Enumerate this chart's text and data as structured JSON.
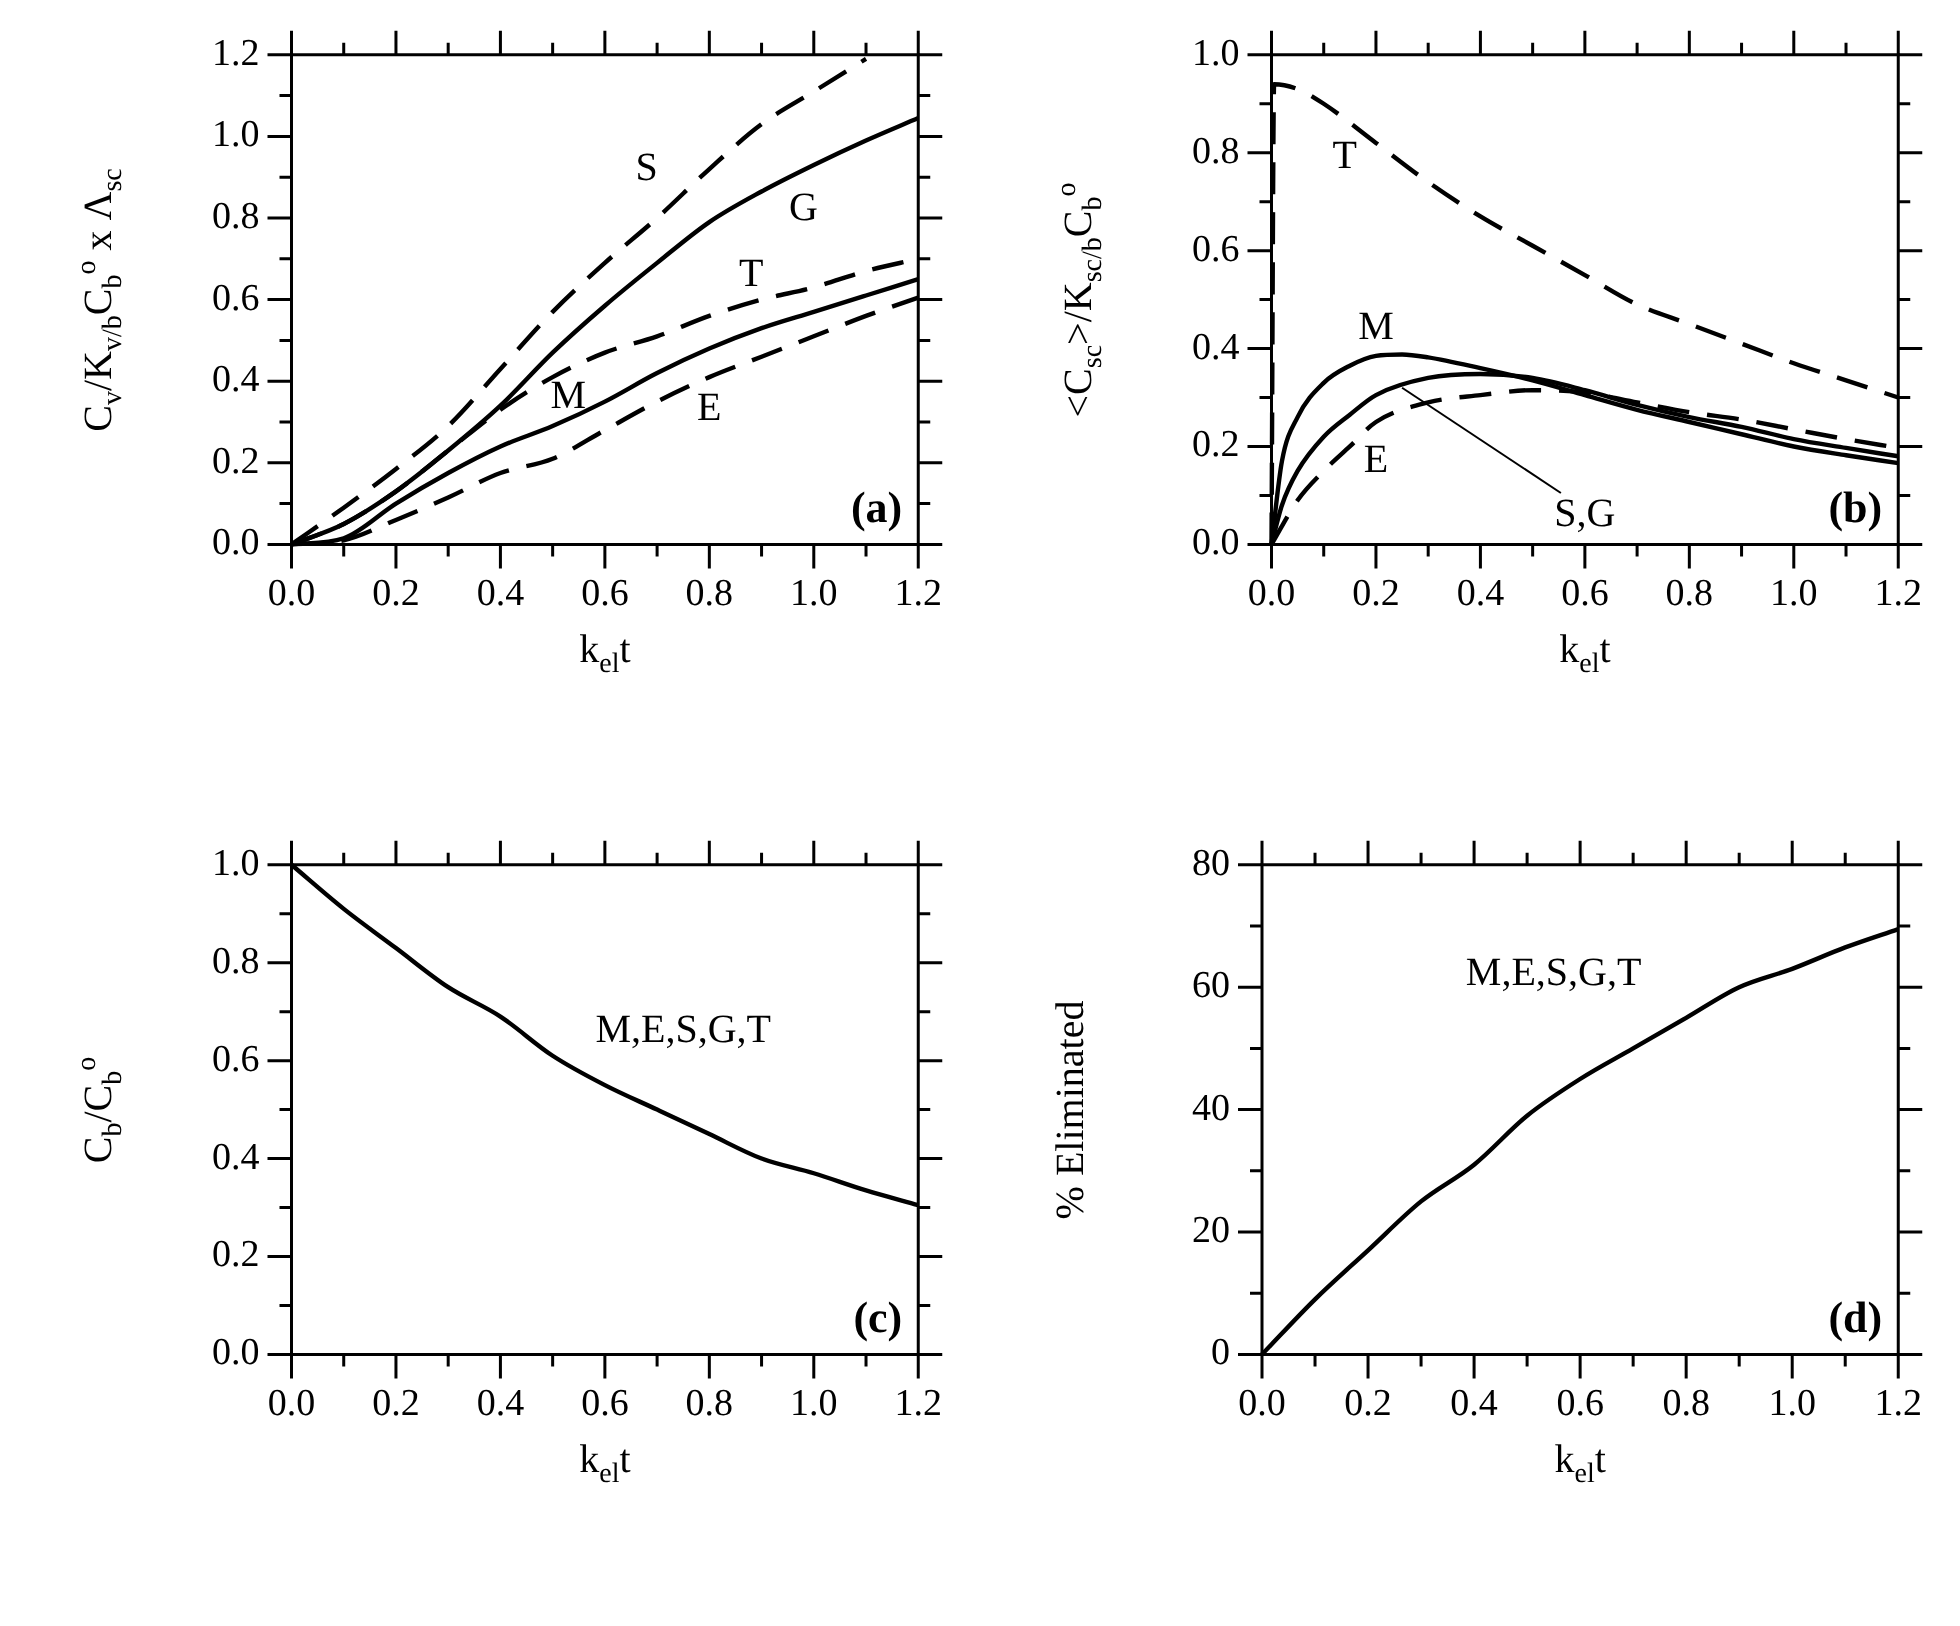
{
  "chart_data": [
    {
      "type": "line",
      "xlabel": "k$_{el}$t",
      "ylabel": "C$_{v}$/K$_{v/b}$C$_{b}$$^{o}$ x Λ$_{sc}$",
      "annotations": [
        "(a)"
      ],
      "legend": false,
      "marker": "none",
      "xlim": [
        0,
        1.2
      ],
      "xticks": [
        {
          "value": 0,
          "label": "0.0"
        },
        {
          "value": 0.2,
          "label": "0.2"
        },
        {
          "value": 0.4,
          "label": "0.4"
        },
        {
          "value": 0.6,
          "label": "0.6"
        },
        {
          "value": 0.8,
          "label": "0.8"
        },
        {
          "value": 1,
          "label": "1.0"
        },
        {
          "value": 1.2,
          "label": "1.2"
        }
      ],
      "ylim": [
        0,
        1.2
      ],
      "yticks": [
        {
          "value": 0,
          "label": "0.0"
        },
        {
          "value": 0.2,
          "label": "0.2"
        },
        {
          "value": 0.4,
          "label": "0.4"
        },
        {
          "value": 0.6,
          "label": "0.6"
        },
        {
          "value": 0.8,
          "label": "0.8"
        },
        {
          "value": 1,
          "label": "1.0"
        },
        {
          "value": 1.2,
          "label": "1.2"
        }
      ],
      "series": [
        {
          "name": "S",
          "color": "#000000",
          "line_style": "dashed",
          "x": [
            0,
            0.1,
            0.2,
            0.3,
            0.4,
            0.5,
            0.6,
            0.7,
            0.8,
            0.9,
            1.0,
            1.1
          ],
          "values": [
            0,
            0.09,
            0.185,
            0.29,
            0.43,
            0.57,
            0.69,
            0.8,
            0.92,
            1.03,
            1.11,
            1.19
          ]
        },
        {
          "name": "G",
          "color": "#000000",
          "line_style": "solid",
          "x": [
            0,
            0.1,
            0.2,
            0.3,
            0.4,
            0.5,
            0.6,
            0.7,
            0.8,
            0.9,
            1.0,
            1.1,
            1.2
          ],
          "values": [
            0,
            0.05,
            0.13,
            0.23,
            0.34,
            0.47,
            0.585,
            0.69,
            0.79,
            0.865,
            0.93,
            0.99,
            1.045
          ]
        },
        {
          "name": "T",
          "color": "#000000",
          "line_style": "dashed",
          "x": [
            0,
            0.1,
            0.2,
            0.3,
            0.4,
            0.5,
            0.6,
            0.7,
            0.8,
            0.9,
            1.0,
            1.1,
            1.2
          ],
          "values": [
            0,
            0.05,
            0.13,
            0.23,
            0.33,
            0.41,
            0.47,
            0.51,
            0.56,
            0.6,
            0.63,
            0.67,
            0.7
          ]
        },
        {
          "name": "M",
          "color": "#000000",
          "line_style": "solid",
          "x": [
            0,
            0.1,
            0.2,
            0.3,
            0.4,
            0.5,
            0.6,
            0.7,
            0.8,
            0.9,
            1.0,
            1.1,
            1.2
          ],
          "values": [
            0,
            0.015,
            0.1,
            0.175,
            0.24,
            0.29,
            0.35,
            0.42,
            0.48,
            0.53,
            0.57,
            0.61,
            0.65
          ]
        },
        {
          "name": "E",
          "color": "#000000",
          "line_style": "dashed",
          "x": [
            0,
            0.1,
            0.2,
            0.3,
            0.4,
            0.5,
            0.6,
            0.7,
            0.8,
            0.9,
            1.0,
            1.1,
            1.2
          ],
          "values": [
            0,
            0.01,
            0.06,
            0.115,
            0.175,
            0.21,
            0.28,
            0.35,
            0.41,
            0.46,
            0.51,
            0.56,
            0.605
          ]
        }
      ]
    },
    {
      "type": "line",
      "xlabel": "k$_{el}$t",
      "ylabel": "<C$_{sc}$>/K$_{sc/b}$C$_{b}$$^{o}$",
      "annotations": [
        "(b)"
      ],
      "legend": false,
      "marker": "none",
      "xlim": [
        0,
        1.2
      ],
      "xticks": [
        {
          "value": 0,
          "label": "0.0"
        },
        {
          "value": 0.2,
          "label": "0.2"
        },
        {
          "value": 0.4,
          "label": "0.4"
        },
        {
          "value": 0.6,
          "label": "0.6"
        },
        {
          "value": 0.8,
          "label": "0.8"
        },
        {
          "value": 1,
          "label": "1.0"
        },
        {
          "value": 1.2,
          "label": "1.2"
        }
      ],
      "ylim": [
        0,
        1.0
      ],
      "yticks": [
        {
          "value": 0,
          "label": "0.0"
        },
        {
          "value": 0.2,
          "label": "0.2"
        },
        {
          "value": 0.4,
          "label": "0.4"
        },
        {
          "value": 0.6,
          "label": "0.6"
        },
        {
          "value": 0.8,
          "label": "0.8"
        },
        {
          "value": 1,
          "label": "1.0"
        }
      ],
      "series": [
        {
          "name": "T",
          "color": "#000000",
          "line_style": "dashed",
          "x": [
            0,
            0.005,
            0.05,
            0.1,
            0.2,
            0.3,
            0.4,
            0.5,
            0.6,
            0.7,
            0.8,
            0.9,
            1.0,
            1.1,
            1.2
          ],
          "values": [
            0,
            0.94,
            0.93,
            0.9,
            0.82,
            0.74,
            0.67,
            0.61,
            0.55,
            0.49,
            0.45,
            0.41,
            0.37,
            0.335,
            0.3
          ]
        },
        {
          "name": "M",
          "color": "#000000",
          "line_style": "solid",
          "x": [
            0,
            0.02,
            0.05,
            0.1,
            0.15,
            0.2,
            0.25,
            0.3,
            0.4,
            0.5,
            0.6,
            0.7,
            0.8,
            0.9,
            1.0,
            1.1,
            1.2
          ],
          "values": [
            0,
            0.17,
            0.26,
            0.33,
            0.365,
            0.385,
            0.388,
            0.382,
            0.36,
            0.335,
            0.305,
            0.275,
            0.25,
            0.225,
            0.2,
            0.182,
            0.166
          ]
        },
        {
          "name": "S,G",
          "color": "#000000",
          "line_style": "solid",
          "x": [
            0,
            0.02,
            0.05,
            0.1,
            0.15,
            0.2,
            0.3,
            0.4,
            0.5,
            0.6,
            0.7,
            0.8,
            0.9,
            1.0,
            1.1,
            1.2
          ],
          "values": [
            0,
            0.08,
            0.15,
            0.22,
            0.265,
            0.305,
            0.34,
            0.348,
            0.34,
            0.315,
            0.285,
            0.26,
            0.24,
            0.215,
            0.197,
            0.18
          ]
        },
        {
          "name": "E",
          "color": "#000000",
          "line_style": "dashed",
          "x": [
            0,
            0.05,
            0.1,
            0.15,
            0.2,
            0.3,
            0.4,
            0.5,
            0.6,
            0.7,
            0.8,
            0.9,
            1.0,
            1.1,
            1.2
          ],
          "values": [
            0,
            0.09,
            0.15,
            0.2,
            0.25,
            0.29,
            0.305,
            0.315,
            0.31,
            0.29,
            0.27,
            0.255,
            0.235,
            0.215,
            0.197
          ]
        }
      ]
    },
    {
      "type": "line",
      "xlabel": "k$_{el}$t",
      "ylabel": "C$_{b}$/C$_{b}$$^{o}$",
      "annotations": [
        "(c)"
      ],
      "legend": false,
      "marker": "none",
      "xlim": [
        0,
        1.2
      ],
      "xticks": [
        {
          "value": 0,
          "label": "0.0"
        },
        {
          "value": 0.2,
          "label": "0.2"
        },
        {
          "value": 0.4,
          "label": "0.4"
        },
        {
          "value": 0.6,
          "label": "0.6"
        },
        {
          "value": 0.8,
          "label": "0.8"
        },
        {
          "value": 1,
          "label": "1.0"
        },
        {
          "value": 1.2,
          "label": "1.2"
        }
      ],
      "ylim": [
        0,
        1.0
      ],
      "yticks": [
        {
          "value": 0,
          "label": "0.0"
        },
        {
          "value": 0.2,
          "label": "0.2"
        },
        {
          "value": 0.4,
          "label": "0.4"
        },
        {
          "value": 0.6,
          "label": "0.6"
        },
        {
          "value": 0.8,
          "label": "0.8"
        },
        {
          "value": 1,
          "label": "1.0"
        }
      ],
      "series": [
        {
          "name": "M,E,S,G,T",
          "color": "#000000",
          "line_style": "solid",
          "x": [
            0,
            0.1,
            0.2,
            0.3,
            0.4,
            0.5,
            0.6,
            0.7,
            0.8,
            0.9,
            1.0,
            1.1,
            1.2
          ],
          "values": [
            1,
            0.91,
            0.83,
            0.75,
            0.69,
            0.61,
            0.55,
            0.5,
            0.45,
            0.4,
            0.37,
            0.335,
            0.305
          ]
        }
      ]
    },
    {
      "type": "line",
      "xlabel": "k$_{el}$t",
      "ylabel": "% Eliminated",
      "annotations": [
        "(d)"
      ],
      "legend": false,
      "marker": "none",
      "xlim": [
        0,
        1.2
      ],
      "xticks": [
        {
          "value": 0,
          "label": "0.0"
        },
        {
          "value": 0.2,
          "label": "0.2"
        },
        {
          "value": 0.4,
          "label": "0.4"
        },
        {
          "value": 0.6,
          "label": "0.6"
        },
        {
          "value": 0.8,
          "label": "0.8"
        },
        {
          "value": 1,
          "label": "1.0"
        },
        {
          "value": 1.2,
          "label": "1.2"
        }
      ],
      "ylim": [
        0,
        80
      ],
      "yticks": [
        0,
        20,
        40,
        60,
        80
      ],
      "series": [
        {
          "name": "M,E,S,G,T",
          "color": "#000000",
          "line_style": "solid",
          "x": [
            0,
            0.1,
            0.2,
            0.3,
            0.4,
            0.5,
            0.6,
            0.7,
            0.8,
            0.9,
            1.0,
            1.1,
            1.2
          ],
          "values": [
            0,
            9,
            17,
            25,
            31,
            39,
            45,
            50,
            55,
            60,
            63,
            66.5,
            69.5
          ]
        }
      ]
    }
  ]
}
